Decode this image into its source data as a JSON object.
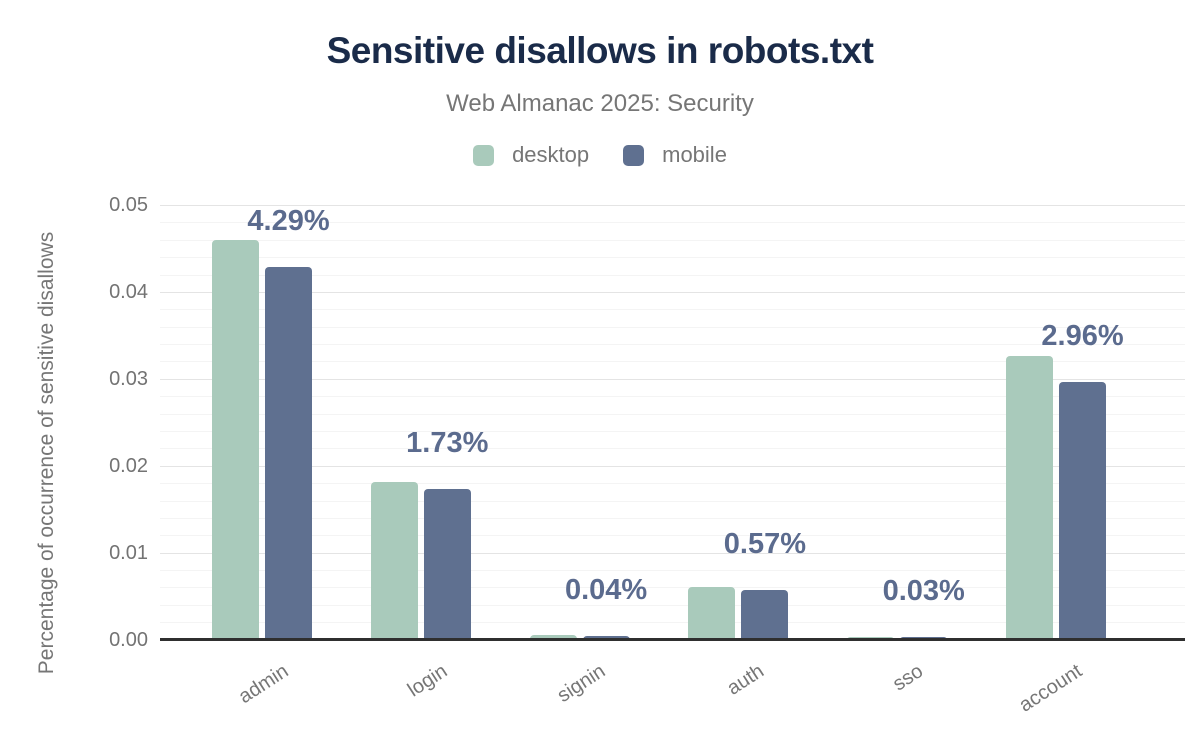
{
  "chart_data": {
    "type": "bar",
    "title": "Sensitive disallows in robots.txt",
    "subtitle": "Web Almanac 2025: Security",
    "categories": [
      "admin",
      "login",
      "signin",
      "auth",
      "sso",
      "account"
    ],
    "series": [
      {
        "name": "desktop",
        "color": "#a9cabb",
        "values": [
          0.046,
          0.0181,
          0.0005,
          0.006,
          0.0003,
          0.0326
        ]
      },
      {
        "name": "mobile",
        "color": "#5f7090",
        "values": [
          0.0429,
          0.0173,
          0.0004,
          0.0057,
          0.0003,
          0.0296
        ]
      }
    ],
    "bar_labels": [
      "4.29%",
      "1.73%",
      "0.04%",
      "0.57%",
      "0.03%",
      "2.96%"
    ],
    "bar_labels_over_series": "mobile",
    "xlabel": "",
    "ylabel": "Percentage of occurrence of sensitive disallows",
    "ylim": [
      0,
      0.05
    ],
    "yticks": [
      "0.00",
      "0.01",
      "0.02",
      "0.03",
      "0.04",
      "0.05"
    ],
    "grid": "horizontal major every 0.01, minor every 0.002",
    "legend_position": "top"
  },
  "colors": {
    "title": "#1a2b49",
    "subtitle_text": "#767676",
    "axis_text": "#737373",
    "bar_label_text": "#5b6b8e",
    "desktop_bar": "#a9cabb",
    "mobile_bar": "#5f7090",
    "gridline_major": "#e4e4e4",
    "gridline_minor": "#f4f4f4",
    "axis_line": "#2f2f2f",
    "background": "#ffffff"
  }
}
